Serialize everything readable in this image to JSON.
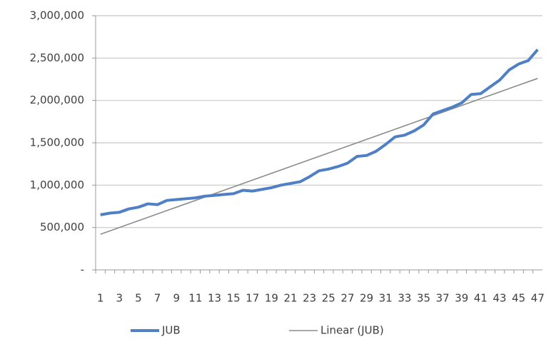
{
  "chart_data": {
    "type": "line",
    "categories": [
      "1",
      null,
      "3",
      null,
      "5",
      null,
      "7",
      null,
      "9",
      null,
      "11",
      null,
      "13",
      null,
      "15",
      null,
      "17",
      null,
      "19",
      null,
      "21",
      null,
      "23",
      null,
      "25",
      null,
      "27",
      null,
      "29",
      null,
      "31",
      null,
      "33",
      null,
      "35",
      null,
      "37",
      null,
      "39",
      null,
      "41",
      null,
      "43",
      null,
      "45",
      null,
      "47"
    ],
    "series": [
      {
        "name": "JUB",
        "color": "#4f7fc4",
        "values": [
          650000,
          670000,
          680000,
          720000,
          740000,
          780000,
          770000,
          820000,
          830000,
          840000,
          850000,
          870000,
          880000,
          890000,
          900000,
          940000,
          930000,
          950000,
          970000,
          1000000,
          1020000,
          1040000,
          1100000,
          1170000,
          1190000,
          1220000,
          1260000,
          1340000,
          1350000,
          1400000,
          1480000,
          1570000,
          1590000,
          1640000,
          1710000,
          1840000,
          1880000,
          1920000,
          1970000,
          2070000,
          2080000,
          2160000,
          2240000,
          2360000,
          2430000,
          2470000,
          2600000
        ]
      },
      {
        "name": "Linear (JUB)",
        "color": "#8c8c8c",
        "values": [
          420000,
          460000,
          500000,
          540000,
          580000,
          620000,
          660000,
          700000,
          740000,
          780000,
          820000,
          860000,
          900000,
          940000,
          980000,
          1020000,
          1060000,
          1100000,
          1140000,
          1180000,
          1220000,
          1260000,
          1300000,
          1340000,
          1380000,
          1420000,
          1460000,
          1500000,
          1540000,
          1580000,
          1620000,
          1660000,
          1700000,
          1740000,
          1780000,
          1820000,
          1860000,
          1900000,
          1940000,
          1980000,
          2020000,
          2060000,
          2100000,
          2140000,
          2180000,
          2220000,
          2260000
        ]
      }
    ],
    "ylim": [
      0,
      3000000
    ],
    "yticks": [
      {
        "value": 0,
        "label": "-"
      },
      {
        "value": 500000,
        "label": "500,000"
      },
      {
        "value": 1000000,
        "label": "1,000,000"
      },
      {
        "value": 1500000,
        "label": "1,500,000"
      },
      {
        "value": 2000000,
        "label": "2,000,000"
      },
      {
        "value": 2500000,
        "label": "2,500,000"
      },
      {
        "value": 3000000,
        "label": "3,000,000"
      }
    ],
    "grid": true,
    "legend": "bottom"
  }
}
